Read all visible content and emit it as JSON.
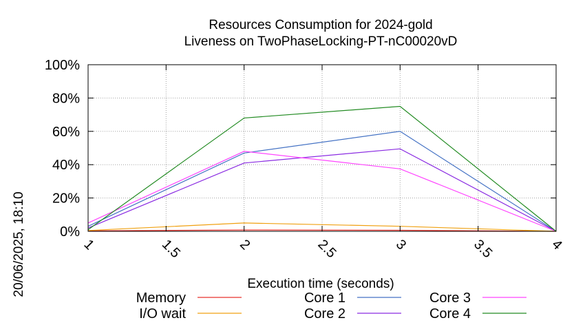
{
  "chart_data": {
    "type": "line",
    "title": "Resources Consumption for 2024-gold",
    "subtitle": "Liveness on TwoPhaseLocking-PT-nC00020vD",
    "xlabel": "Execution time (seconds)",
    "ylabel": "",
    "side_label": "20/06/2025, 18:10",
    "x": [
      1,
      2,
      3,
      4
    ],
    "xlim": [
      1,
      4
    ],
    "ylim": [
      0,
      100
    ],
    "x_ticks": [
      1,
      1.5,
      2,
      2.5,
      3,
      3.5,
      4
    ],
    "x_tick_labels": [
      "1",
      "1.5",
      "2",
      "2.5",
      "3",
      "3.5",
      "4"
    ],
    "y_ticks": [
      0,
      20,
      40,
      60,
      80,
      100
    ],
    "y_tick_labels": [
      "0%",
      "20%",
      "40%",
      "60%",
      "80%",
      "100%"
    ],
    "grid": true,
    "legend_position": "bottom",
    "series": [
      {
        "name": "Memory",
        "color": "#e8322c",
        "values": [
          0.3,
          0.8,
          0.6,
          0
        ]
      },
      {
        "name": "I/O wait",
        "color": "#f0a010",
        "values": [
          0.5,
          5,
          3,
          0
        ]
      },
      {
        "name": "Core 1",
        "color": "#4472c4",
        "values": [
          3,
          47,
          60,
          0
        ]
      },
      {
        "name": "Core 2",
        "color": "#8a2be2",
        "values": [
          2,
          41,
          49.5,
          0
        ]
      },
      {
        "name": "Core 3",
        "color": "#ff44ff",
        "values": [
          5,
          48,
          37.5,
          0
        ]
      },
      {
        "name": "Core 4",
        "color": "#228b22",
        "values": [
          1,
          68,
          75,
          0
        ]
      }
    ]
  }
}
